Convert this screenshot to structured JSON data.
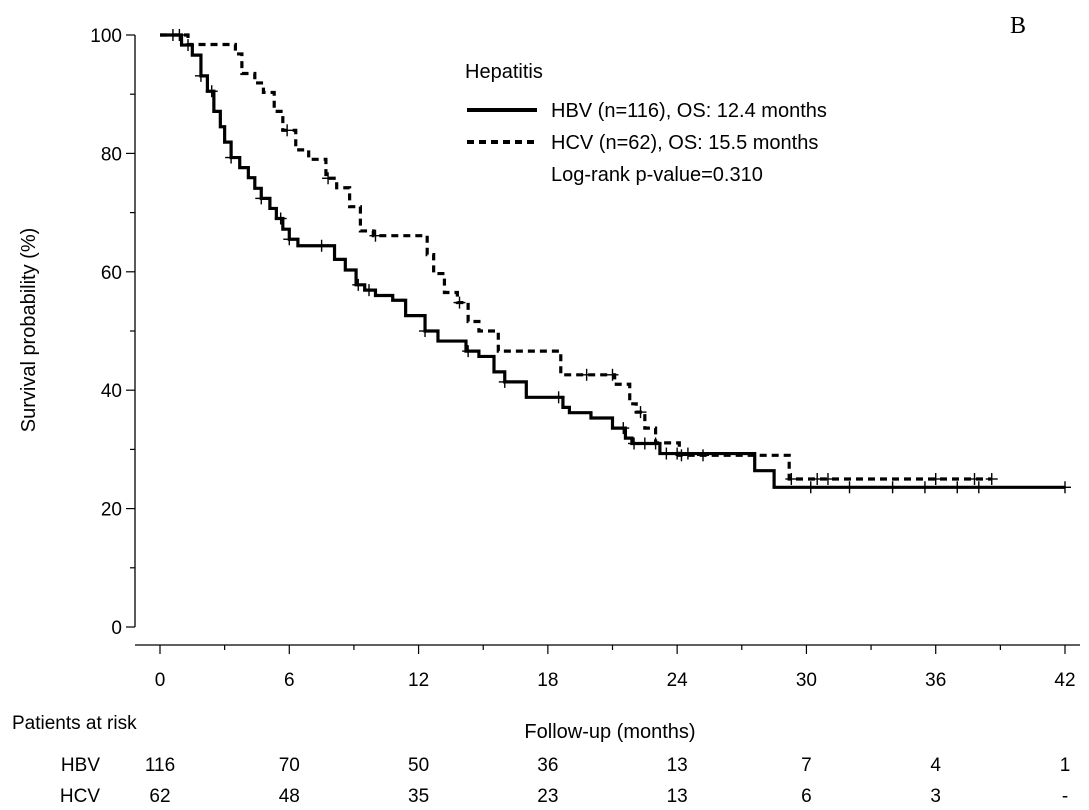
{
  "chart_data": {
    "type": "line",
    "subtype": "kaplan-meier",
    "panel_label": "B",
    "xlabel": "Follow-up (months)",
    "ylabel": "Survival probability (%)",
    "xlim": [
      0,
      42
    ],
    "ylim": [
      0,
      100
    ],
    "x_ticks": [
      0,
      6,
      12,
      18,
      24,
      30,
      36,
      42
    ],
    "y_ticks": [
      0,
      20,
      40,
      60,
      80,
      100
    ],
    "legend": {
      "title": "Hepatitis",
      "placement": "top-right",
      "note": "Log-rank p-value=0.310"
    },
    "series": [
      {
        "name": "HBV (n=116), OS: 12.4 months",
        "style": "solid",
        "color": "#000000",
        "steps": [
          [
            0,
            100
          ],
          [
            0.7,
            100
          ],
          [
            1.0,
            98.3
          ],
          [
            1.5,
            96.6
          ],
          [
            1.9,
            93.1
          ],
          [
            2.2,
            90.5
          ],
          [
            2.5,
            87.1
          ],
          [
            2.8,
            84.5
          ],
          [
            3.0,
            81.9
          ],
          [
            3.3,
            79.3
          ],
          [
            3.7,
            77.6
          ],
          [
            4.1,
            75.9
          ],
          [
            4.4,
            74.1
          ],
          [
            4.7,
            72.4
          ],
          [
            5.1,
            70.7
          ],
          [
            5.4,
            69.0
          ],
          [
            5.7,
            67.2
          ],
          [
            6.0,
            65.5
          ],
          [
            6.4,
            64.4
          ],
          [
            7.5,
            64.4
          ],
          [
            8.1,
            62.1
          ],
          [
            8.6,
            60.3
          ],
          [
            9.1,
            57.8
          ],
          [
            9.5,
            56.9
          ],
          [
            10.0,
            56.0
          ],
          [
            10.8,
            55.2
          ],
          [
            11.4,
            52.6
          ],
          [
            12.3,
            50.0
          ],
          [
            12.9,
            48.3
          ],
          [
            14.2,
            46.6
          ],
          [
            14.8,
            45.7
          ],
          [
            15.5,
            43.1
          ],
          [
            16.0,
            41.4
          ],
          [
            17.0,
            38.8
          ],
          [
            18.7,
            37.1
          ],
          [
            19.0,
            36.2
          ],
          [
            20.0,
            35.3
          ],
          [
            21.0,
            33.6
          ],
          [
            21.6,
            31.9
          ],
          [
            21.9,
            31.0
          ],
          [
            23.2,
            29.3
          ],
          [
            27.6,
            26.4
          ],
          [
            28.5,
            23.6
          ],
          [
            42.0,
            23.6
          ]
        ],
        "censored": [
          0.6,
          0.9,
          1.3,
          1.9,
          2.4,
          3.3,
          4.7,
          5.6,
          6.0,
          7.5,
          9.2,
          9.7,
          12.3,
          14.3,
          16.0,
          18.5,
          21.5,
          22.0,
          22.5,
          23.0,
          23.5,
          24.0,
          24.5,
          30.2,
          32.0,
          34.0,
          35.5,
          37.0,
          38.0,
          42.0
        ]
      },
      {
        "name": "HCV (n=62), OS: 15.5 months",
        "style": "dashed",
        "color": "#000000",
        "steps": [
          [
            0,
            100
          ],
          [
            1.3,
            98.4
          ],
          [
            3.2,
            98.4
          ],
          [
            3.5,
            96.8
          ],
          [
            3.8,
            93.5
          ],
          [
            4.4,
            91.9
          ],
          [
            4.8,
            90.3
          ],
          [
            5.3,
            87.1
          ],
          [
            5.7,
            83.9
          ],
          [
            6.3,
            80.6
          ],
          [
            6.9,
            79.0
          ],
          [
            7.7,
            75.8
          ],
          [
            8.2,
            74.2
          ],
          [
            8.8,
            71.0
          ],
          [
            9.3,
            66.9
          ],
          [
            9.9,
            66.1
          ],
          [
            11.7,
            66.1
          ],
          [
            12.4,
            62.9
          ],
          [
            12.7,
            59.7
          ],
          [
            13.2,
            56.5
          ],
          [
            13.8,
            54.8
          ],
          [
            14.3,
            51.6
          ],
          [
            14.8,
            50.0
          ],
          [
            15.7,
            46.6
          ],
          [
            18.3,
            46.6
          ],
          [
            18.6,
            42.6
          ],
          [
            21.1,
            41.0
          ],
          [
            21.8,
            37.7
          ],
          [
            22.1,
            36.3
          ],
          [
            22.5,
            33.6
          ],
          [
            23.0,
            31.1
          ],
          [
            24.1,
            29.0
          ],
          [
            25.4,
            29.0
          ],
          [
            29.2,
            25.0
          ],
          [
            38.6,
            25.0
          ]
        ],
        "censored": [
          5.9,
          7.8,
          10.0,
          13.9,
          19.8,
          21.0,
          22.3,
          24.2,
          25.2,
          29.3,
          30.5,
          31.0,
          36.0,
          37.8,
          38.6
        ]
      }
    ],
    "risk_table": {
      "header": "Patients at risk",
      "times": [
        0,
        6,
        12,
        18,
        24,
        30,
        36,
        42
      ],
      "rows": [
        {
          "group": "HBV",
          "values": [
            "116",
            "70",
            "50",
            "36",
            "13",
            "7",
            "4",
            "1"
          ]
        },
        {
          "group": "HCV",
          "values": [
            "62",
            "48",
            "35",
            "23",
            "13",
            "6",
            "3",
            "-"
          ]
        }
      ]
    }
  }
}
